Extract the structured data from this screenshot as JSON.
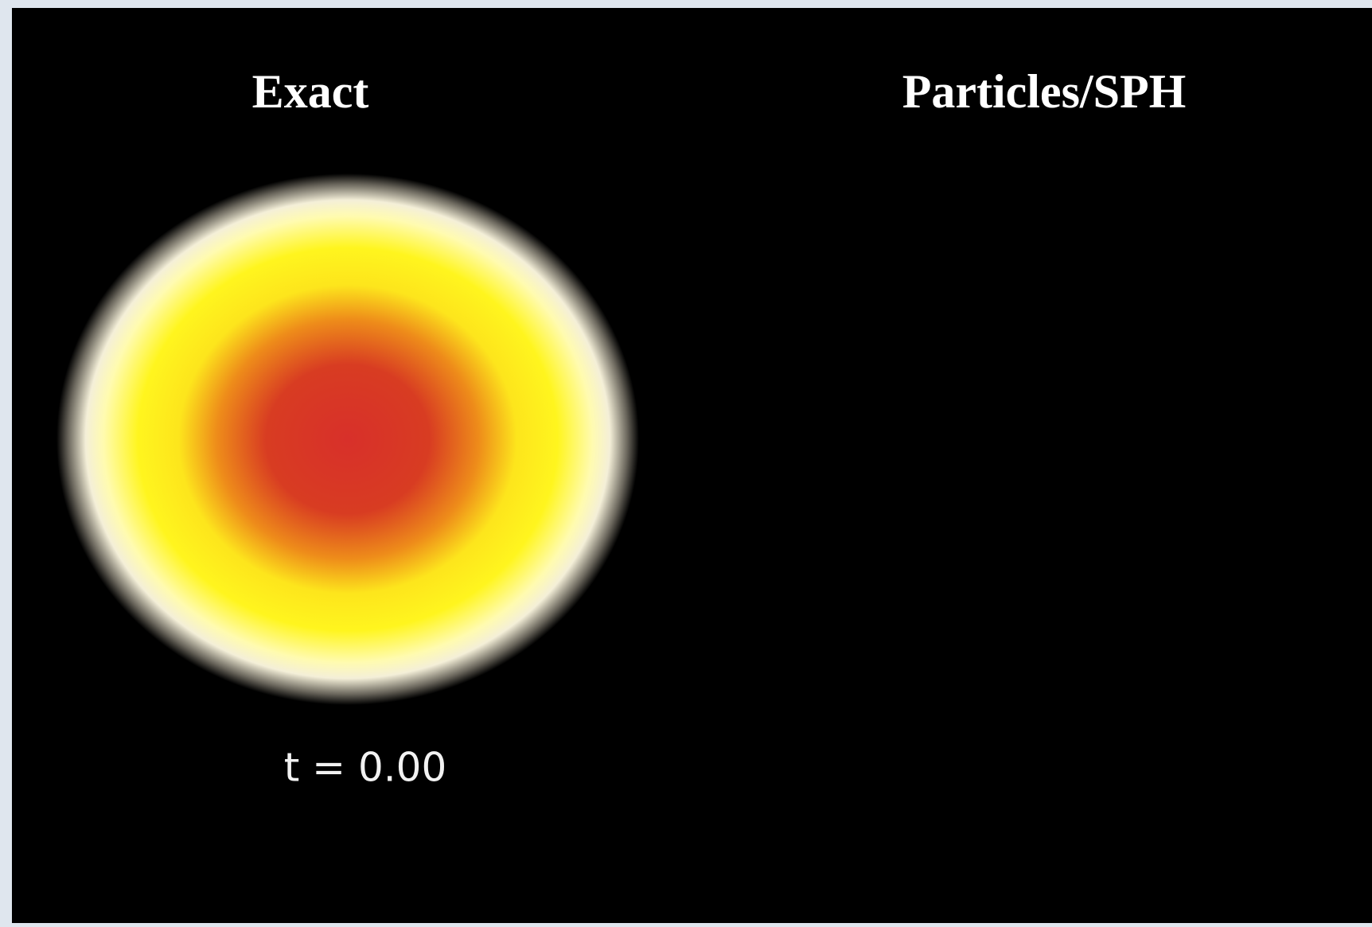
{
  "panels": [
    {
      "title": "Exact"
    },
    {
      "title": "Particles/SPH"
    }
  ],
  "time_label": "t = 0.00"
}
